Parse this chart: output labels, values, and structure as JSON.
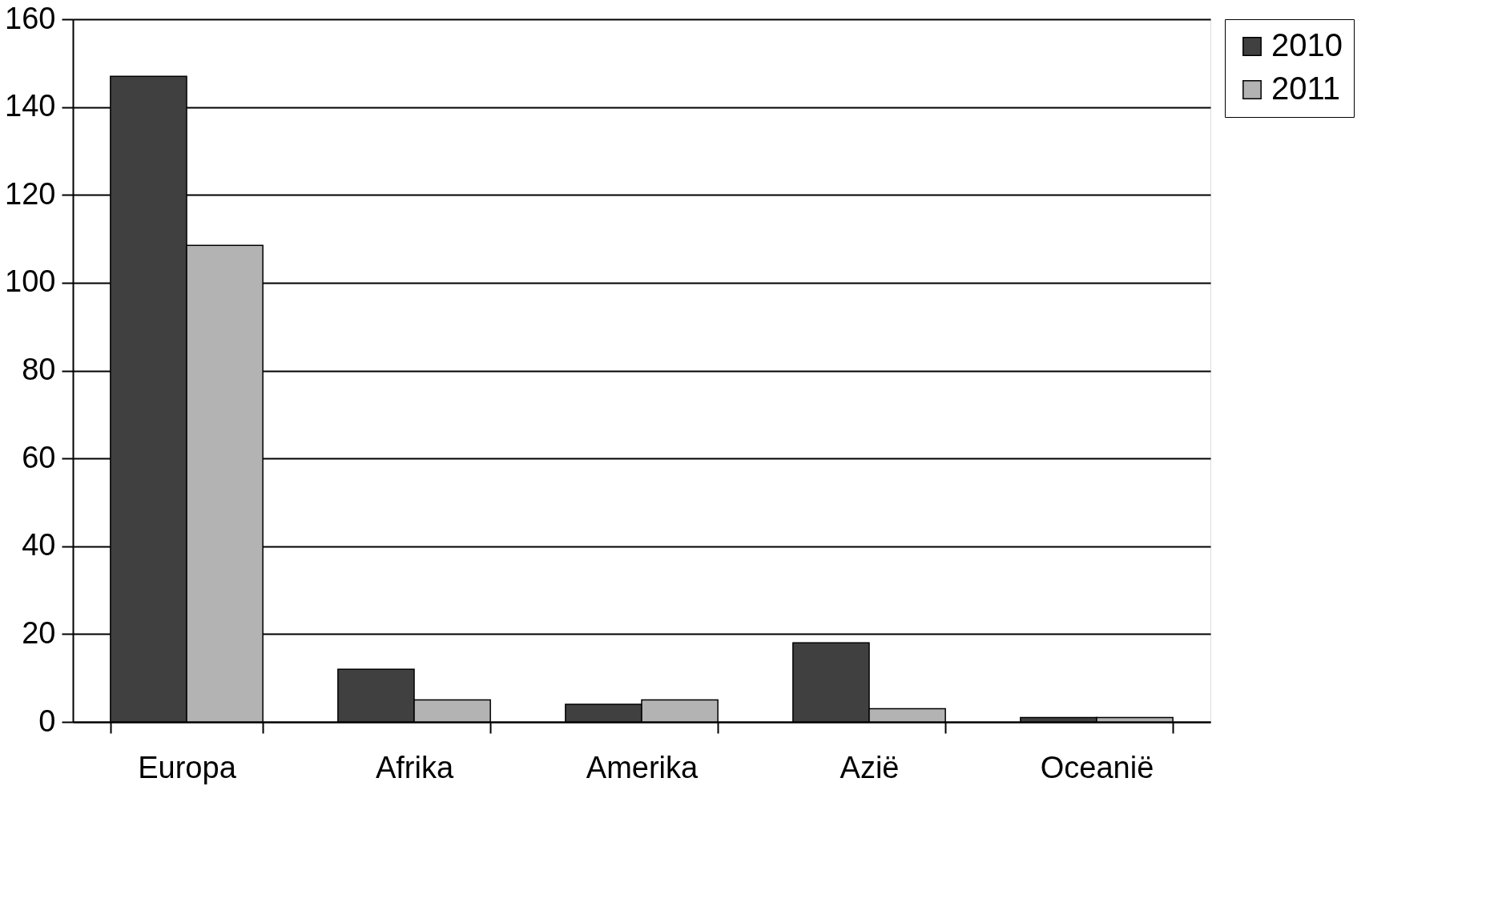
{
  "chart_data": {
    "type": "bar",
    "categories": [
      "Europa",
      "Afrika",
      "Amerika",
      "Azië",
      "Oceanië"
    ],
    "series": [
      {
        "name": "2010",
        "color": "#404040",
        "values": [
          147,
          12,
          4,
          18,
          1
        ]
      },
      {
        "name": "2011",
        "color": "#b3b3b3",
        "values": [
          108.5,
          5,
          5,
          3,
          1
        ]
      }
    ],
    "ylim": [
      0,
      160
    ],
    "yticks": [
      0,
      20,
      40,
      60,
      80,
      100,
      120,
      140,
      160
    ],
    "grid": "y",
    "legend": "right"
  }
}
